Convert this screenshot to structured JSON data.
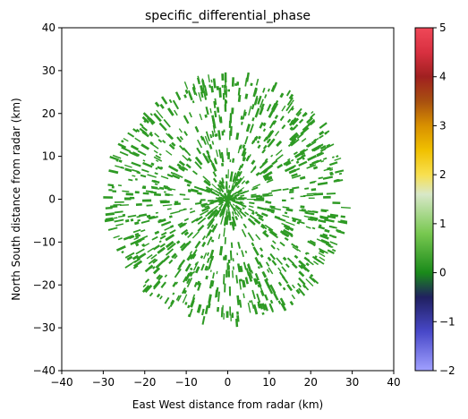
{
  "chart_data": {
    "type": "heatmap",
    "title": "specific_differential_phase",
    "xlabel": "East West distance from radar (km)",
    "ylabel": "North South distance from radar (km)",
    "xlim": [
      -40,
      40
    ],
    "ylim": [
      -40,
      40
    ],
    "xticks": [
      -40,
      -30,
      -20,
      -10,
      0,
      10,
      20,
      30,
      40
    ],
    "yticks": [
      -40,
      -30,
      -20,
      -10,
      0,
      10,
      20,
      30,
      40
    ],
    "grid": false,
    "data_extent_radius_km": 29,
    "dominant_value_color": "#2e9a24",
    "colorbar": {
      "vmin": -2,
      "vmax": 5,
      "ticks": [
        -2,
        -1,
        0,
        1,
        2,
        3,
        4,
        5
      ],
      "stops": [
        {
          "value": -2.0,
          "color": "#a0a0ff"
        },
        {
          "value": -1.2,
          "color": "#4848c8"
        },
        {
          "value": -0.5,
          "color": "#202060"
        },
        {
          "value": 0.0,
          "color": "#1a8a1a"
        },
        {
          "value": 0.8,
          "color": "#78c850"
        },
        {
          "value": 1.6,
          "color": "#d8e8c8"
        },
        {
          "value": 2.0,
          "color": "#f8e050"
        },
        {
          "value": 2.5,
          "color": "#f0c000"
        },
        {
          "value": 3.0,
          "color": "#d89000"
        },
        {
          "value": 3.5,
          "color": "#a85010"
        },
        {
          "value": 4.0,
          "color": "#a02020"
        },
        {
          "value": 4.5,
          "color": "#d83040"
        },
        {
          "value": 5.0,
          "color": "#f04858"
        }
      ]
    }
  }
}
